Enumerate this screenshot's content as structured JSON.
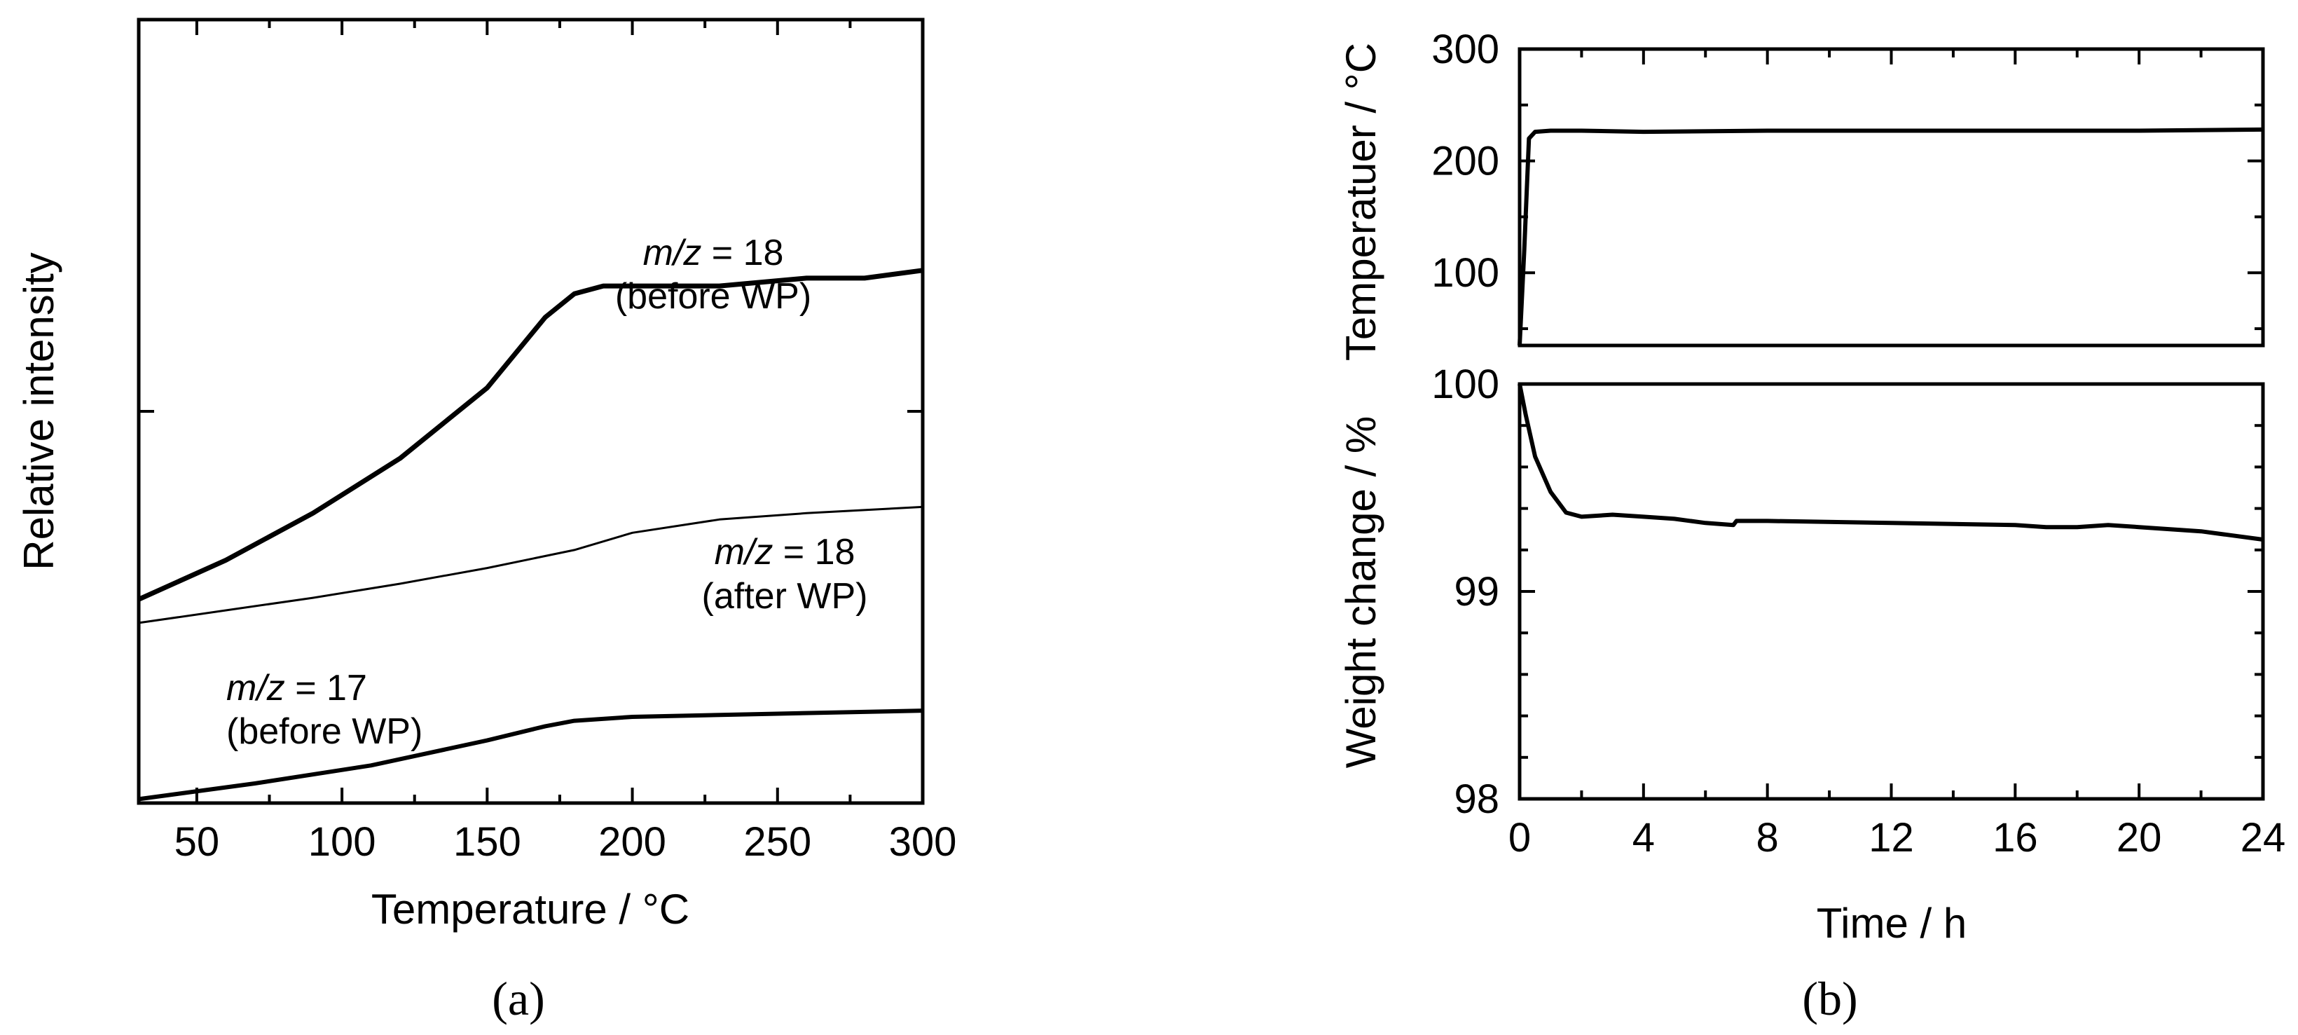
{
  "chart_data": [
    {
      "panel": "(a)",
      "type": "line",
      "xlabel": "Temperature / °C",
      "ylabel": "Relative intensity",
      "xlim": [
        30,
        300
      ],
      "ylim": [
        0,
        100
      ],
      "xticks": [
        "50",
        "100",
        "150",
        "200",
        "250",
        "300"
      ],
      "ytick_values": [
        0,
        50
      ],
      "yticks_labeled": false,
      "series": [
        {
          "name": "m/z = 18 (before WP)",
          "x": [
            30,
            60,
            90,
            120,
            150,
            170,
            180,
            190,
            200,
            230,
            260,
            280,
            300
          ],
          "y": [
            26,
            31,
            37,
            44,
            53,
            62,
            65,
            66,
            66,
            66,
            67,
            67,
            68
          ]
        },
        {
          "name": "m/z = 18 (after WP)",
          "x": [
            30,
            60,
            90,
            120,
            150,
            180,
            200,
            230,
            260,
            300
          ],
          "y": [
            23,
            24.6,
            26.2,
            28,
            30,
            32.3,
            34.5,
            36.2,
            37,
            37.8
          ]
        },
        {
          "name": "m/z = 17 (before WP)",
          "x": [
            30,
            70,
            110,
            150,
            170,
            180,
            200,
            250,
            300
          ],
          "y": [
            0.5,
            2.5,
            4.8,
            8,
            9.8,
            10.5,
            11,
            11.4,
            11.8
          ]
        }
      ],
      "annotations": [
        {
          "italic": "m/z",
          "rest": " = 18",
          "line2": "(before WP)"
        },
        {
          "italic": "m/z",
          "rest": " = 18",
          "line2": "(after WP)"
        },
        {
          "italic": "m/z",
          "rest": " = 17",
          "line2": "(before WP)"
        }
      ]
    },
    {
      "panel": "(b)",
      "type": "line",
      "xlabel": "Time / h",
      "xlim": [
        0,
        24
      ],
      "xticks": [
        "0",
        "4",
        "8",
        "12",
        "16",
        "20",
        "24"
      ],
      "subplots": [
        {
          "name": "temperature",
          "ylabel": "Temperatuer / °C",
          "ylim": [
            35,
            300
          ],
          "yticks": [
            "100",
            "200",
            "300"
          ],
          "series": [
            {
              "name": "Temperature",
              "x": [
                0,
                0.15,
                0.3,
                0.5,
                1,
                2,
                4,
                8,
                12,
                16,
                20,
                24
              ],
              "y": [
                35,
                120,
                220,
                226,
                227,
                227,
                226,
                227,
                227,
                227,
                227,
                228
              ]
            }
          ]
        },
        {
          "name": "weight",
          "ylabel": "Weight change / %",
          "ylim": [
            98,
            100
          ],
          "yticks": [
            "98",
            "99",
            "100"
          ],
          "series": [
            {
              "name": "Weight change",
              "x": [
                0,
                0.2,
                0.5,
                1,
                1.5,
                2,
                3,
                4,
                5,
                6,
                6.9,
                7,
                8,
                12,
                16,
                17,
                18,
                19,
                20,
                22,
                24
              ],
              "y": [
                100,
                99.85,
                99.65,
                99.48,
                99.38,
                99.36,
                99.37,
                99.36,
                99.35,
                99.33,
                99.32,
                99.34,
                99.34,
                99.33,
                99.32,
                99.31,
                99.31,
                99.32,
                99.31,
                99.29,
                99.25
              ]
            }
          ]
        }
      ]
    }
  ]
}
